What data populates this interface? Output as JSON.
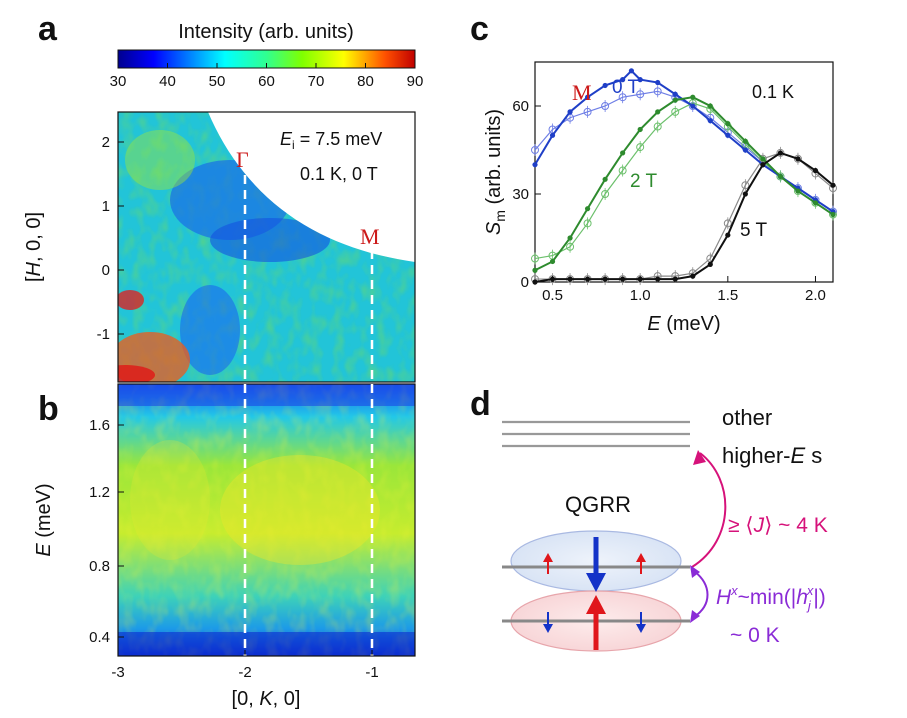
{
  "panels": {
    "a": "a",
    "b": "b",
    "c": "c",
    "d": "d"
  },
  "colorbar": {
    "title": "Intensity (arb. units)",
    "ticks": [
      "30",
      "40",
      "50",
      "60",
      "70",
      "80",
      "90"
    ],
    "range": [
      30,
      90
    ]
  },
  "panel_a": {
    "ylabel_parts": [
      "[",
      "H",
      ", 0, 0]"
    ],
    "y_ticks": [
      "2",
      "1",
      "0",
      "-1"
    ],
    "ei_label": "i",
    "ei_text": " = 7.5 meV",
    "ei_symbol": "E",
    "condition": "0.1 K, 0 T",
    "gamma_label": "Γ",
    "m_label": "M"
  },
  "panel_b": {
    "ylabel": "E (meV)",
    "ylabel_symbol": "E",
    "ylabel_unit": " (meV)",
    "y_ticks": [
      "1.6",
      "1.2",
      "0.8",
      "0.4"
    ],
    "x_ticks": [
      "-3",
      "-2",
      "-1"
    ],
    "xlabel_parts": [
      "[0, ",
      "K",
      ", 0]"
    ]
  },
  "chart_data": {
    "type": "line",
    "title": "",
    "xlabel": "E (meV)",
    "ylabel": "Sm (arb. units)",
    "xlim": [
      0.4,
      2.1
    ],
    "ylim": [
      0,
      75
    ],
    "x_ticks": [
      "0.5",
      "1.0",
      "1.5",
      "2.0"
    ],
    "y_ticks": [
      "0",
      "30",
      "60"
    ],
    "annotation": "0.1 K",
    "m_label": "M",
    "series": [
      {
        "name": "0 T",
        "color": "#1f3fc7",
        "style": "filled",
        "x": [
          0.4,
          0.5,
          0.6,
          0.7,
          0.8,
          0.9,
          0.95,
          1.0,
          1.1,
          1.2,
          1.3,
          1.4,
          1.5,
          1.6,
          1.7,
          1.8,
          1.9,
          2.0,
          2.1
        ],
        "y": [
          40,
          50,
          58,
          63,
          67,
          69,
          72,
          69,
          68,
          64,
          60,
          55,
          50,
          45,
          40,
          36,
          32,
          28,
          24
        ]
      },
      {
        "name": "",
        "color": "#6f7fe6",
        "style": "open",
        "x": [
          0.4,
          0.5,
          0.6,
          0.7,
          0.8,
          0.9,
          1.0,
          1.1,
          1.2,
          1.3,
          1.4,
          1.5,
          1.6,
          1.7,
          1.8,
          1.9,
          2.0,
          2.1
        ],
        "y": [
          45,
          52,
          56,
          58,
          60,
          63,
          64,
          65,
          63,
          60,
          56,
          51,
          46,
          41,
          36,
          32,
          28,
          24
        ]
      },
      {
        "name": "2 T",
        "color": "#2e8b2e",
        "style": "filled",
        "x": [
          0.4,
          0.5,
          0.6,
          0.7,
          0.8,
          0.9,
          1.0,
          1.1,
          1.2,
          1.3,
          1.4,
          1.5,
          1.6,
          1.7,
          1.8,
          1.9,
          2.0,
          2.1
        ],
        "y": [
          4,
          7,
          15,
          25,
          35,
          44,
          52,
          58,
          62,
          63,
          60,
          54,
          48,
          42,
          36,
          31,
          27,
          23
        ]
      },
      {
        "name": "",
        "color": "#6cc06c",
        "style": "open",
        "x": [
          0.4,
          0.5,
          0.6,
          0.7,
          0.8,
          0.9,
          1.0,
          1.1,
          1.2,
          1.3,
          1.4,
          1.5,
          1.6,
          1.7,
          1.8,
          1.9,
          2.0,
          2.1
        ],
        "y": [
          8,
          9,
          12,
          20,
          30,
          38,
          46,
          53,
          58,
          61,
          59,
          53,
          47,
          41,
          36,
          31,
          27,
          23
        ]
      },
      {
        "name": "5 T",
        "color": "#111111",
        "style": "filled",
        "x": [
          0.4,
          0.5,
          0.6,
          0.7,
          0.8,
          0.9,
          1.0,
          1.1,
          1.2,
          1.3,
          1.4,
          1.5,
          1.6,
          1.7,
          1.8,
          1.9,
          2.0,
          2.1
        ],
        "y": [
          0,
          1,
          1,
          1,
          1,
          1,
          1,
          1,
          1,
          2,
          6,
          16,
          30,
          40,
          44,
          42,
          38,
          33
        ]
      },
      {
        "name": "",
        "color": "#8a8a8a",
        "style": "open",
        "x": [
          0.4,
          0.5,
          0.6,
          0.7,
          0.8,
          0.9,
          1.0,
          1.1,
          1.2,
          1.3,
          1.4,
          1.5,
          1.6,
          1.7,
          1.8,
          1.9,
          2.0,
          2.1
        ],
        "y": [
          1,
          1,
          1,
          1,
          1,
          1,
          1,
          2,
          2,
          3,
          8,
          20,
          33,
          42,
          44,
          42,
          37,
          32
        ]
      }
    ]
  },
  "panel_d": {
    "other_line1": "other",
    "other_line2_pre": "higher-",
    "other_line2_sym": "E",
    "other_line2_post": " s",
    "qgrr": "QGRR",
    "gap_upper_pre": "≥ ⟨",
    "gap_upper_sym": "J",
    "gap_upper_post": "⟩ ~ 4 K",
    "gap_lower_sym": "H",
    "gap_lower_sup": "x",
    "gap_lower_mid": "~min(|",
    "gap_lower_h": "h",
    "gap_lower_sub": "j",
    "gap_lower_hsup": "x",
    "gap_lower_end": "|)",
    "gap_lower2": "~ 0 K",
    "colors": {
      "magenta": "#d6127a",
      "purple": "#8a2bd6",
      "red": "#e0161b",
      "blue": "#1433c8"
    }
  }
}
